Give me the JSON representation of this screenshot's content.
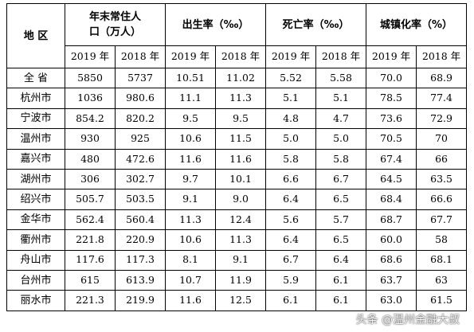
{
  "table": {
    "header": {
      "region": "地 区",
      "population": "年末常住人口（万人）",
      "birth_rate": "出生率（‰）",
      "death_rate": "死亡率（‰）",
      "urbanization": "城镇化率（%）"
    },
    "years": [
      "2019 年",
      "2018 年"
    ],
    "rows": [
      [
        "全 省",
        "5850",
        "5737",
        "10.51",
        "11.02",
        "5.52",
        "5.58",
        "70.0",
        "68.9"
      ],
      [
        "杭州市",
        "1036",
        "980.6",
        "11.1",
        "11.3",
        "5.1",
        "5.1",
        "78.5",
        "77.4"
      ],
      [
        "宁波市",
        "854.2",
        "820.2",
        "9.5",
        "9.5",
        "4.8",
        "4.7",
        "73.6",
        "72.9"
      ],
      [
        "温州市",
        "930",
        "925",
        "10.6",
        "11.5",
        "5.0",
        "5.0",
        "70.5",
        "70"
      ],
      [
        "嘉兴市",
        "480",
        "472.6",
        "11.6",
        "11.6",
        "5.8",
        "5.8",
        "67.4",
        "66"
      ],
      [
        "湖州市",
        "306",
        "302.7",
        "9.7",
        "10.1",
        "6.6",
        "6.7",
        "64.5",
        "63.5"
      ],
      [
        "绍兴市",
        "505.7",
        "503.5",
        "9.1",
        "9.0",
        "6.4",
        "6.5",
        "68.4",
        "66.6"
      ],
      [
        "金华市",
        "562.4",
        "560.4",
        "11.3",
        "12.4",
        "5.6",
        "5.7",
        "68.7",
        "67.7"
      ],
      [
        "衢州市",
        "221.8",
        "220.9",
        "10.6",
        "11.3",
        "6.4",
        "6.5",
        "60.0",
        "58"
      ],
      [
        "舟山市",
        "117.6",
        "117.3",
        "8.1",
        "9.1",
        "6.7",
        "6.4",
        "68.6",
        "68.1"
      ],
      [
        "台州市",
        "615",
        "613.9",
        "10.7",
        "11.9",
        "5.9",
        "6.1",
        "63.7",
        "63"
      ],
      [
        "丽水市",
        "221.3",
        "219.9",
        "11.6",
        "12.5",
        "6.1",
        "6.1",
        "63.0",
        "61.5"
      ]
    ]
  },
  "watermark": "头条 @温州金融大叔"
}
